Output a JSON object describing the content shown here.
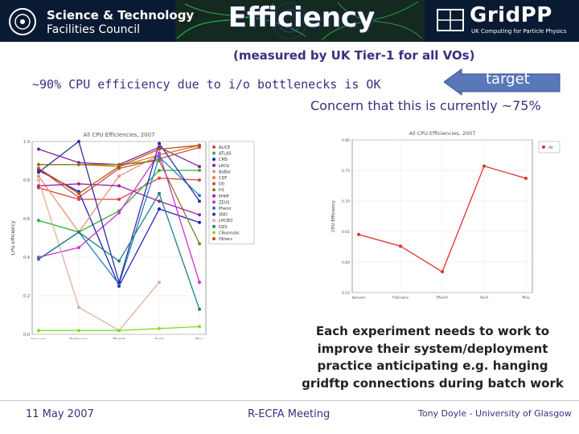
{
  "header": {
    "title": "Efficiency",
    "stfc_line1": "Science & Technology",
    "stfc_line2": "Facilities Council",
    "gridpp_name": "GridPP",
    "gridpp_tagline": "UK Computing for Particle Physics",
    "colors": {
      "background": "#0b1a33",
      "title": "#ffffff"
    }
  },
  "subtitle": "(measured by UK Tier-1 for all VOs)",
  "cpu_line": "~90% CPU efficiency due to i/o bottlenecks is OK",
  "concern_line": "Concern that this is currently ~75%",
  "target_label": "target",
  "note_lines": [
    "Each experiment needs to work to",
    "improve their system/deployment",
    "practice anticipating e.g. hanging",
    "gridftp connections during batch work"
  ],
  "footer": {
    "date": "11 May 2007",
    "event": "R-ECFA Meeting",
    "author": "Tony Doyle - University of Glasgow"
  },
  "colors": {
    "text_accent": "#3a3080",
    "arrow": "#5a78b8"
  },
  "chart_data": [
    {
      "type": "line",
      "title": "All CPU Efficiencies, 2007",
      "ylabel": "CPU Efficiency",
      "xlabel": "",
      "categories": [
        "January",
        "February",
        "March",
        "April",
        "May"
      ],
      "ylim": [
        0.0,
        1.0
      ],
      "yticks": [
        "0.0",
        "0.2",
        "0.4",
        "0.6",
        "0.8",
        "1.0"
      ],
      "grid": true,
      "legend": "right",
      "series": [
        {
          "name": "ALICE",
          "color": "#e04040",
          "values": [
            0.76,
            0.7,
            0.7,
            0.81,
            0.8
          ]
        },
        {
          "name": "ATLAS",
          "color": "#30b030",
          "values": [
            0.59,
            0.53,
            0.64,
            0.85,
            0.85
          ]
        },
        {
          "name": "CMS",
          "color": "#2020c0",
          "values": [
            0.85,
            0.74,
            0.25,
            0.65,
            0.58
          ]
        },
        {
          "name": "LHCb",
          "color": "#8020a0",
          "values": [
            0.96,
            0.89,
            0.88,
            0.97,
            0.87
          ]
        },
        {
          "name": "BaBar",
          "color": "#f09070",
          "values": [
            0.82,
            0.53,
            0.82,
            0.93,
            0.98
          ]
        },
        {
          "name": "CDF",
          "color": "#e08020",
          "values": [
            0.88,
            0.88,
            0.87,
            0.93,
            0.98
          ]
        },
        {
          "name": "D0",
          "color": "#c05050",
          "values": [
            0.86,
            0.71,
            0.86,
            0.91,
            0.97
          ]
        },
        {
          "name": "H1",
          "color": "#808020",
          "values": [
            0.88,
            0.88,
            0.88,
            0.9,
            0.47
          ]
        },
        {
          "name": "PHPP",
          "color": "#a020a0",
          "values": [
            0.77,
            0.78,
            0.77,
            0.69,
            0.62
          ]
        },
        {
          "name": "ZEUS",
          "color": "#d030d0",
          "values": [
            0.4,
            0.45,
            0.63,
            0.94,
            0.27
          ]
        },
        {
          "name": "Pheno",
          "color": "#2080c0",
          "values": [
            0.39,
            0.53,
            0.26,
            0.92,
            0.72
          ]
        },
        {
          "name": "SNO",
          "color": "#3030a0",
          "values": [
            0.84,
            1.0,
            0.27,
            0.99,
            0.69
          ]
        },
        {
          "name": "LHCBO",
          "color": "#e0b0a0",
          "values": [
            0.8,
            0.14,
            0.02,
            0.27,
            null
          ]
        },
        {
          "name": "DZS",
          "color": "#208080",
          "values": [
            0.39,
            0.53,
            0.38,
            0.73,
            0.13
          ]
        },
        {
          "name": "CRosmsbs",
          "color": "#80e020",
          "values": [
            0.02,
            0.02,
            0.02,
            0.03,
            0.04
          ]
        },
        {
          "name": "Others",
          "color": "#c05010",
          "values": [
            0.86,
            0.73,
            0.87,
            0.96,
            0.98
          ]
        }
      ]
    },
    {
      "type": "line",
      "title": "All CPU Efficiencies, 2007",
      "ylabel": "CPU Efficiency",
      "xlabel": "",
      "categories": [
        "January",
        "February",
        "March",
        "April",
        "May"
      ],
      "ylim": [
        0.55,
        0.8
      ],
      "yticks": [
        "0.55",
        "0.60",
        "0.65",
        "0.70",
        "0.75",
        "0.80"
      ],
      "grid": true,
      "legend": "top-right",
      "series": [
        {
          "name": "All",
          "color": "#e03030",
          "values": [
            0.645,
            0.626,
            0.584,
            0.757,
            0.737
          ]
        }
      ]
    }
  ]
}
